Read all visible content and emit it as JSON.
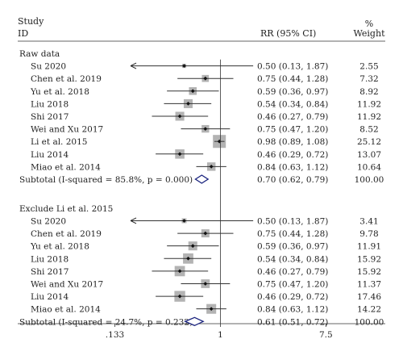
{
  "header": {
    "study_line1": "Study",
    "study_line2": "ID",
    "rr_label": "RR (95% CI)",
    "pct_symbol": "%",
    "weight_label": "Weight"
  },
  "axis": {
    "scale": "log",
    "tick_labels": [
      ".133",
      "1",
      "7.5"
    ],
    "ticks": [
      0.133,
      1,
      7.5
    ],
    "range": [
      0.064,
      10.0
    ]
  },
  "colors": {
    "line": "#333333",
    "weight_box": "#b3b3b3",
    "point": "#111111",
    "diamond": "#1a237e",
    "arrow": "#222222"
  },
  "chart_data": {
    "type": "forest",
    "groups": [
      {
        "title": "Raw data",
        "studies": [
          {
            "name": "Su 2020",
            "rr": 0.5,
            "lo": 0.13,
            "hi": 1.87,
            "ci": "0.50 (0.13, 1.87)",
            "weight": "2.55",
            "arrow_left": true
          },
          {
            "name": "Chen et al. 2019",
            "rr": 0.75,
            "lo": 0.44,
            "hi": 1.28,
            "ci": "0.75 (0.44, 1.28)",
            "weight": "7.32"
          },
          {
            "name": "Yu et al. 2018",
            "rr": 0.59,
            "lo": 0.36,
            "hi": 0.97,
            "ci": "0.59 (0.36, 0.97)",
            "weight": "8.92"
          },
          {
            "name": "Liu 2018",
            "rr": 0.54,
            "lo": 0.34,
            "hi": 0.84,
            "ci": "0.54 (0.34, 0.84)",
            "weight": "11.92"
          },
          {
            "name": "Shi 2017",
            "rr": 0.46,
            "lo": 0.27,
            "hi": 0.79,
            "ci": "0.46 (0.27, 0.79)",
            "weight": "11.92"
          },
          {
            "name": "Wei and Xu 2017",
            "rr": 0.75,
            "lo": 0.47,
            "hi": 1.2,
            "ci": "0.75 (0.47, 1.20)",
            "weight": "8.52"
          },
          {
            "name": "Li et al. 2015",
            "rr": 0.98,
            "lo": 0.89,
            "hi": 1.08,
            "ci": "0.98 (0.89, 1.08)",
            "weight": "25.12"
          },
          {
            "name": "Liu 2014",
            "rr": 0.46,
            "lo": 0.29,
            "hi": 0.72,
            "ci": "0.46 (0.29, 0.72)",
            "weight": "13.07"
          },
          {
            "name": "Miao et al. 2014",
            "rr": 0.84,
            "lo": 0.63,
            "hi": 1.12,
            "ci": "0.84 (0.63, 1.12)",
            "weight": "10.64"
          }
        ],
        "subtotal": {
          "label": "Subtotal (I-squared = 85.8%, p = 0.000)",
          "rr": 0.7,
          "lo": 0.62,
          "hi": 0.79,
          "ci": "0.70 (0.62, 0.79)",
          "weight": "100.00"
        }
      },
      {
        "title": "Exclude Li et al. 2015",
        "studies": [
          {
            "name": "Su 2020",
            "rr": 0.5,
            "lo": 0.13,
            "hi": 1.87,
            "ci": "0.50 (0.13, 1.87)",
            "weight": "3.41",
            "arrow_left": true
          },
          {
            "name": "Chen et al. 2019",
            "rr": 0.75,
            "lo": 0.44,
            "hi": 1.28,
            "ci": "0.75 (0.44, 1.28)",
            "weight": "9.78"
          },
          {
            "name": "Yu et al. 2018",
            "rr": 0.59,
            "lo": 0.36,
            "hi": 0.97,
            "ci": "0.59 (0.36, 0.97)",
            "weight": "11.91"
          },
          {
            "name": "Liu 2018",
            "rr": 0.54,
            "lo": 0.34,
            "hi": 0.84,
            "ci": "0.54 (0.34, 0.84)",
            "weight": "15.92"
          },
          {
            "name": "Shi 2017",
            "rr": 0.46,
            "lo": 0.27,
            "hi": 0.79,
            "ci": "0.46 (0.27, 0.79)",
            "weight": "15.92"
          },
          {
            "name": "Wei and Xu 2017",
            "rr": 0.75,
            "lo": 0.47,
            "hi": 1.2,
            "ci": "0.75 (0.47, 1.20)",
            "weight": "11.37"
          },
          {
            "name": "Liu 2014",
            "rr": 0.46,
            "lo": 0.29,
            "hi": 0.72,
            "ci": "0.46 (0.29, 0.72)",
            "weight": "17.46"
          },
          {
            "name": "Miao et al. 2014",
            "rr": 0.84,
            "lo": 0.63,
            "hi": 1.12,
            "ci": "0.84 (0.63, 1.12)",
            "weight": "14.22"
          }
        ],
        "subtotal": {
          "label": "Subtotal (I-squared = 24.7%, p = 0.232)",
          "rr": 0.61,
          "lo": 0.51,
          "hi": 0.72,
          "ci": "0.61 (0.51, 0.72)",
          "weight": "100.00"
        }
      }
    ],
    "null_line": 1
  }
}
